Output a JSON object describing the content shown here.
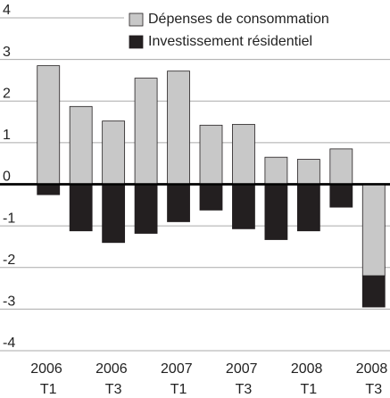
{
  "chart_data": {
    "type": "stacked_bar",
    "categories": [
      "2006 T1",
      null,
      "2006 T3",
      null,
      "2007 T1",
      null,
      "2007 T3",
      null,
      "2008 T1",
      null,
      "2008 T3"
    ],
    "series": [
      {
        "name": "Dépenses de consommation",
        "color": "#c8c8c8",
        "values": [
          2.85,
          1.87,
          1.52,
          2.55,
          2.72,
          1.42,
          1.44,
          0.65,
          0.6,
          0.85,
          -2.2
        ]
      },
      {
        "name": "Investissement résidentiel",
        "color": "#231f20",
        "values": [
          -0.25,
          -1.12,
          -1.4,
          -1.18,
          -0.9,
          -0.62,
          -1.07,
          -1.33,
          -1.12,
          -0.55,
          -0.75
        ]
      }
    ],
    "ylim": [
      -4,
      4
    ],
    "yticks": [
      -4,
      -3,
      -2,
      -1,
      0,
      1,
      2,
      3,
      4
    ],
    "grid": true,
    "legend": "top-right"
  }
}
